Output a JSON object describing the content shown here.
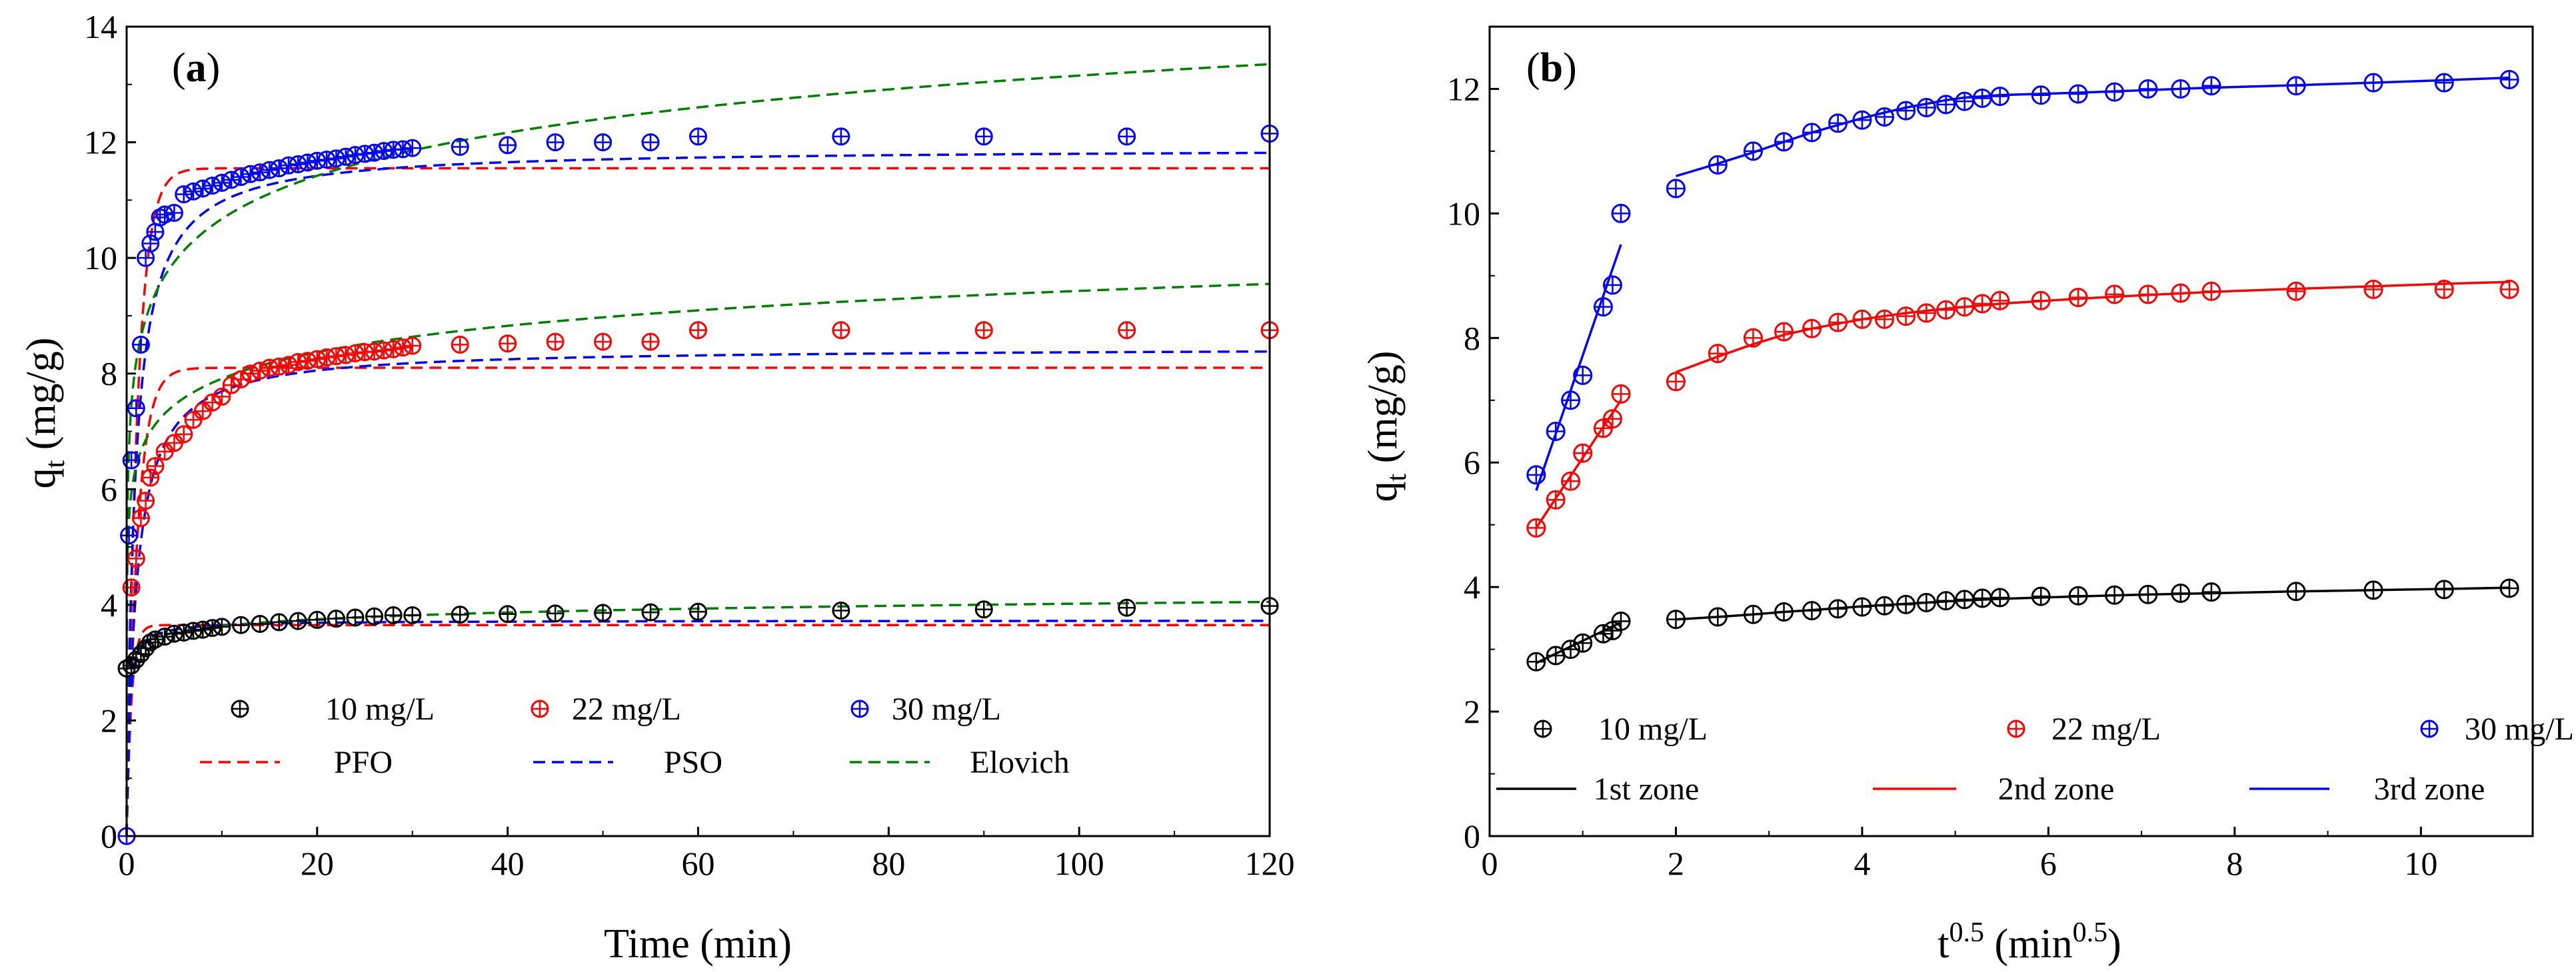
{
  "figure": {
    "panels": [
      "(a)",
      "(b)"
    ]
  },
  "chart_data": [
    {
      "type": "scatter",
      "panel": "a",
      "label_parts": [
        "(",
        "a",
        ")"
      ],
      "xlabel": "Time (min)",
      "ylabel": "q_t (mg/g)",
      "ylabel_main": "q",
      "ylabel_sub": "t",
      "ylabel_rest": " (mg/g)",
      "xlim": [
        0,
        120
      ],
      "ylim": [
        0,
        14
      ],
      "xticks": [
        0,
        20,
        40,
        60,
        80,
        100,
        120
      ],
      "yticks": [
        0,
        2,
        4,
        6,
        8,
        10,
        12,
        14
      ],
      "series": [
        {
          "name": "10 mg/L",
          "color": "#000000",
          "marker": "circle-plus",
          "x": [
            0,
            0.5,
            1,
            1.5,
            2,
            2.5,
            3,
            4,
            5,
            6,
            7,
            8,
            9,
            10,
            12,
            14,
            16,
            18,
            20,
            22,
            24,
            26,
            28,
            30,
            35,
            40,
            45,
            50,
            55,
            60,
            75,
            90,
            105,
            120
          ],
          "y": [
            2.9,
            2.95,
            3.05,
            3.15,
            3.25,
            3.35,
            3.4,
            3.45,
            3.5,
            3.52,
            3.55,
            3.57,
            3.6,
            3.62,
            3.65,
            3.67,
            3.7,
            3.72,
            3.74,
            3.76,
            3.78,
            3.8,
            3.82,
            3.82,
            3.83,
            3.84,
            3.85,
            3.86,
            3.87,
            3.88,
            3.9,
            3.92,
            3.95,
            3.98
          ]
        },
        {
          "name": "22 mg/L",
          "color": "#ff0000",
          "marker": "circle-plus",
          "x": [
            0.5,
            1,
            1.5,
            2,
            2.5,
            3,
            4,
            5,
            6,
            7,
            8,
            9,
            10,
            11,
            12,
            13,
            14,
            15,
            16,
            17,
            18,
            19,
            20,
            21,
            22,
            23,
            24,
            25,
            26,
            27,
            28,
            29,
            30,
            35,
            40,
            45,
            50,
            55,
            60,
            75,
            90,
            105,
            120
          ],
          "y": [
            4.3,
            4.8,
            5.5,
            5.8,
            6.2,
            6.4,
            6.65,
            6.8,
            6.95,
            7.2,
            7.35,
            7.5,
            7.6,
            7.8,
            7.9,
            8.0,
            8.05,
            8.1,
            8.12,
            8.15,
            8.2,
            8.22,
            8.25,
            8.28,
            8.3,
            8.32,
            8.35,
            8.37,
            8.38,
            8.4,
            8.42,
            8.45,
            8.48,
            8.5,
            8.52,
            8.55,
            8.55,
            8.55,
            8.75,
            8.75,
            8.75,
            8.75,
            8.75
          ]
        },
        {
          "name": "30 mg/L",
          "color": "#0000ff",
          "marker": "circle-plus",
          "x": [
            0,
            0.25,
            0.5,
            1,
            1.5,
            2,
            2.5,
            3,
            3.5,
            4,
            5,
            6,
            7,
            8,
            9,
            10,
            11,
            12,
            13,
            14,
            15,
            16,
            17,
            18,
            19,
            20,
            21,
            22,
            23,
            24,
            25,
            26,
            27,
            28,
            29,
            30,
            35,
            40,
            45,
            50,
            55,
            60,
            75,
            90,
            105,
            120
          ],
          "y": [
            0,
            5.2,
            6.5,
            7.4,
            8.5,
            10.0,
            10.25,
            10.45,
            10.7,
            10.75,
            10.78,
            11.1,
            11.15,
            11.2,
            11.25,
            11.3,
            11.35,
            11.4,
            11.45,
            11.48,
            11.52,
            11.55,
            11.6,
            11.62,
            11.65,
            11.68,
            11.7,
            11.72,
            11.75,
            11.78,
            11.8,
            11.82,
            11.85,
            11.87,
            11.88,
            11.9,
            11.92,
            11.95,
            12.0,
            12.0,
            12.0,
            12.1,
            12.1,
            12.1,
            12.1,
            12.15
          ]
        }
      ],
      "models": [
        {
          "name": "PFO",
          "color": "#ff0000",
          "dash": "dashed",
          "curves": [
            {
              "qe": 3.65,
              "k1": 2.0
            },
            {
              "qe": 8.1,
              "k1": 0.9
            },
            {
              "qe": 11.55,
              "k1": 0.9
            }
          ]
        },
        {
          "name": "PSO",
          "color": "#0000ff",
          "dash": "dashed",
          "curves": [
            {
              "qe": 3.73,
              "k2": 1.2
            },
            {
              "qe": 8.45,
              "k2": 0.12
            },
            {
              "qe": 11.9,
              "k2": 0.1
            }
          ]
        },
        {
          "name": "Elovich",
          "color": "#008000",
          "dash": "dashed",
          "curves": [
            {
              "a": 3.43,
              "b": 0.13
            },
            {
              "a": 6.48,
              "b": 0.65
            },
            {
              "a": 8.8,
              "b": 0.95
            }
          ]
        }
      ],
      "legend": {
        "row1": [
          "10 mg/L",
          "22 mg/L",
          "30 mg/L"
        ],
        "row2": [
          "PFO",
          "PSO",
          "Elovich"
        ],
        "placement": "lower-center"
      }
    },
    {
      "type": "scatter",
      "panel": "b",
      "label_parts": [
        "(",
        "b",
        ")"
      ],
      "xlabel": "t^0.5 (min^0.5)",
      "xlabel_main": "t",
      "xlabel_sup": "0.5",
      "xlabel_open": " (min",
      "xlabel_sup2": "0.5",
      "xlabel_close": ")",
      "ylabel": "q_t (mg/g)",
      "ylabel_main": "q",
      "ylabel_sub": "t",
      "ylabel_rest": " (mg/g)",
      "xlim": [
        0,
        11.2
      ],
      "ylim": [
        0,
        13
      ],
      "xticks": [
        0,
        2,
        4,
        6,
        8,
        10
      ],
      "yticks": [
        0,
        2,
        4,
        6,
        8,
        10,
        12
      ],
      "series": [
        {
          "name": "10 mg/L",
          "color": "#000000",
          "marker": "circle-plus",
          "x": [
            0.5,
            0.71,
            0.87,
            1.0,
            1.22,
            1.32,
            1.41,
            2.0,
            2.45,
            2.83,
            3.16,
            3.46,
            3.74,
            4.0,
            4.24,
            4.47,
            4.69,
            4.9,
            5.1,
            5.29,
            5.48,
            5.92,
            6.32,
            6.71,
            7.07,
            7.42,
            7.75,
            8.66,
            9.49,
            10.25,
            10.95
          ],
          "y": [
            2.8,
            2.9,
            3.0,
            3.1,
            3.25,
            3.3,
            3.45,
            3.48,
            3.52,
            3.56,
            3.6,
            3.62,
            3.65,
            3.68,
            3.7,
            3.72,
            3.75,
            3.78,
            3.8,
            3.82,
            3.83,
            3.85,
            3.86,
            3.87,
            3.88,
            3.9,
            3.92,
            3.93,
            3.95,
            3.96,
            3.98
          ]
        },
        {
          "name": "22 mg/L",
          "color": "#ff0000",
          "marker": "circle-plus",
          "x": [
            0.5,
            0.71,
            0.87,
            1.0,
            1.22,
            1.32,
            1.41,
            2.0,
            2.45,
            2.83,
            3.16,
            3.46,
            3.74,
            4.0,
            4.24,
            4.47,
            4.69,
            4.9,
            5.1,
            5.29,
            5.48,
            5.92,
            6.32,
            6.71,
            7.07,
            7.42,
            7.75,
            8.66,
            9.49,
            10.25,
            10.95
          ],
          "y": [
            4.95,
            5.4,
            5.7,
            6.15,
            6.55,
            6.7,
            7.1,
            7.3,
            7.75,
            8.0,
            8.1,
            8.15,
            8.25,
            8.3,
            8.3,
            8.35,
            8.4,
            8.45,
            8.5,
            8.55,
            8.6,
            8.6,
            8.65,
            8.7,
            8.7,
            8.72,
            8.75,
            8.75,
            8.78,
            8.78,
            8.78
          ]
        },
        {
          "name": "30 mg/L",
          "color": "#0000ff",
          "marker": "circle-plus",
          "x": [
            0.5,
            0.71,
            0.87,
            1.0,
            1.22,
            1.32,
            1.41,
            2.0,
            2.45,
            2.83,
            3.16,
            3.46,
            3.74,
            4.0,
            4.24,
            4.47,
            4.69,
            4.9,
            5.1,
            5.29,
            5.48,
            5.92,
            6.32,
            6.71,
            7.07,
            7.42,
            7.75,
            8.66,
            9.49,
            10.25,
            10.95
          ],
          "y": [
            5.8,
            6.5,
            7.0,
            7.4,
            8.5,
            8.85,
            10.0,
            10.4,
            10.78,
            11.0,
            11.15,
            11.3,
            11.45,
            11.5,
            11.55,
            11.65,
            11.7,
            11.75,
            11.8,
            11.85,
            11.88,
            11.9,
            11.92,
            11.95,
            12.0,
            12.0,
            12.05,
            12.05,
            12.1,
            12.1,
            12.15
          ]
        }
      ],
      "zone_fits": [
        {
          "name": "1st zone",
          "color": "#000000",
          "lines": [
            {
              "x": [
                0.5,
                1.41
              ],
              "y": [
                2.78,
                3.43
              ]
            },
            {
              "x": [
                2.0,
                2.45,
                2.83,
                3.16,
                3.46,
                3.74,
                4.0,
                4.47,
                4.9,
                5.48,
                6.32,
                7.07,
                7.75,
                8.66,
                9.49,
                10.25,
                10.95
              ],
              "y": [
                3.48,
                3.52,
                3.56,
                3.6,
                3.63,
                3.66,
                3.69,
                3.73,
                3.77,
                3.81,
                3.85,
                3.88,
                3.9,
                3.93,
                3.95,
                3.97,
                3.99
              ]
            }
          ]
        },
        {
          "name": "2nd zone",
          "color": "#ff0000",
          "lines": [
            {
              "x": [
                0.5,
                1.41
              ],
              "y": [
                4.95,
                7.0
              ]
            },
            {
              "x": [
                2.0,
                2.45,
                2.83,
                3.16,
                3.46,
                3.74,
                4.0,
                4.47,
                4.9,
                5.48,
                6.32,
                7.07,
                7.75,
                8.66,
                9.49,
                10.25,
                10.95
              ],
              "y": [
                7.45,
                7.7,
                7.9,
                8.05,
                8.15,
                8.23,
                8.3,
                8.4,
                8.47,
                8.55,
                8.63,
                8.69,
                8.74,
                8.79,
                8.83,
                8.87,
                8.9
              ]
            }
          ]
        },
        {
          "name": "3rd zone",
          "color": "#0000ff",
          "lines": [
            {
              "x": [
                0.5,
                1.41
              ],
              "y": [
                5.55,
                9.5
              ]
            },
            {
              "x": [
                2.0,
                2.45,
                2.83,
                3.16,
                3.46,
                3.74,
                4.0,
                4.24,
                4.47,
                4.69,
                4.9,
                5.1,
                5.29,
                5.48,
                5.92,
                6.32,
                7.07,
                7.75,
                8.66,
                9.49,
                10.25,
                10.95
              ],
              "y": [
                10.6,
                10.8,
                10.98,
                11.15,
                11.3,
                11.42,
                11.53,
                11.62,
                11.7,
                11.76,
                11.82,
                11.86,
                11.88,
                11.9,
                11.92,
                11.94,
                11.98,
                12.02,
                12.06,
                12.1,
                12.14,
                12.18
              ]
            }
          ]
        }
      ],
      "legend": {
        "row1": [
          "10 mg/L",
          "22 mg/L",
          "30 mg/L"
        ],
        "row2": [
          "1st zone",
          "2nd zone",
          "3rd zone"
        ],
        "placement": "lower-center"
      }
    }
  ]
}
